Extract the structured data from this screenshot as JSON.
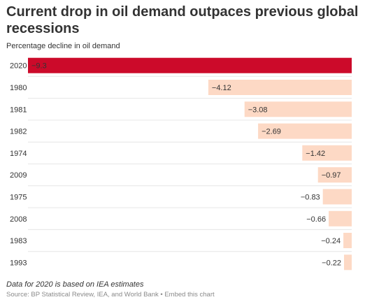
{
  "chart_data": {
    "type": "bar",
    "orientation": "horizontal",
    "title": "Current drop in oil demand outpaces previous global recessions",
    "subtitle": "Percentage decline in oil demand",
    "categories": [
      "2020",
      "1980",
      "1981",
      "1982",
      "1974",
      "2009",
      "1975",
      "2008",
      "1983",
      "1993"
    ],
    "values": [
      -9.3,
      -4.12,
      -3.08,
      -2.69,
      -1.42,
      -0.97,
      -0.83,
      -0.66,
      -0.24,
      -0.22
    ],
    "value_labels": [
      "−9.3",
      "−4.12",
      "−3.08",
      "−2.69",
      "−1.42",
      "−0.97",
      "−0.83",
      "−0.66",
      "−0.24",
      "−0.22"
    ],
    "xlim": [
      -9.3,
      0
    ],
    "highlight_category": "2020",
    "colors": {
      "highlight": "#cc0a2a",
      "default": "#fdd9c5",
      "highlight_label": "#ffffff",
      "default_label": "#333333",
      "separator": "#e6e6e6"
    },
    "grid": false,
    "legend": "none"
  },
  "footer": {
    "note": "Data for 2020 is based on IEA estimates",
    "source": "Source: BP Statistical Review, IEA, and World Bank",
    "separator": " • ",
    "embed": "Embed this chart"
  }
}
